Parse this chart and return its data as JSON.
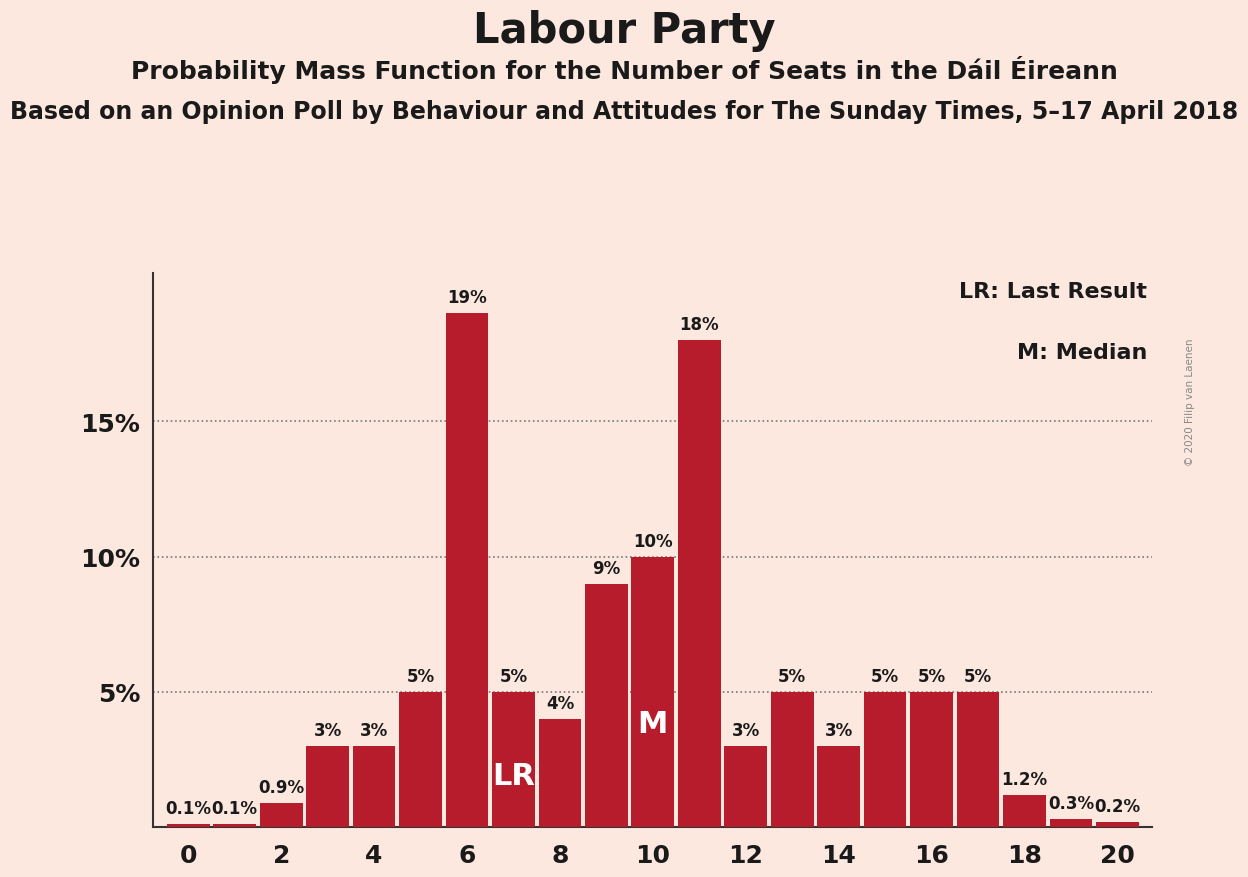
{
  "title": "Labour Party",
  "subtitle1": "Probability Mass Function for the Number of Seats in the Dáil Éireann",
  "subtitle2": "Based on an Opinion Poll by Behaviour and Attitudes for The Sunday Times, 5–17 April 2018",
  "copyright": "© 2020 Filip van Laenen",
  "legend_lr": "LR: Last Result",
  "legend_m": "M: Median",
  "background_color": "#fce8df",
  "bar_color": "#b71c2c",
  "seats": [
    0,
    1,
    2,
    3,
    4,
    5,
    6,
    7,
    8,
    9,
    10,
    11,
    12,
    13,
    14,
    15,
    16,
    17,
    18,
    19,
    20
  ],
  "probabilities": [
    0.1,
    0.1,
    0.9,
    3.0,
    3.0,
    5.0,
    19.0,
    5.0,
    4.0,
    9.0,
    10.0,
    18.0,
    3.0,
    5.0,
    3.0,
    5.0,
    5.0,
    5.0,
    1.2,
    0.3,
    0.2
  ],
  "bar_labels": [
    "0.1%",
    "0.1%",
    "0.9%",
    "3%",
    "3%",
    "5%",
    "19%",
    "5%",
    "4%",
    "9%",
    "10%",
    "18%",
    "3%",
    "5%",
    "3%",
    "5%",
    "5%",
    "5%",
    "1.2%",
    "0.3%",
    "0.2%"
  ],
  "last_result_seat": 7,
  "median_seat": 10,
  "ylim_max": 20.5,
  "yticks": [
    5,
    10,
    15
  ],
  "ytick_labels": [
    "5%",
    "10%",
    "15%"
  ],
  "xticks": [
    0,
    2,
    4,
    6,
    8,
    10,
    12,
    14,
    16,
    18,
    20
  ],
  "title_fontsize": 30,
  "subtitle1_fontsize": 18,
  "subtitle2_fontsize": 17,
  "bar_label_fontsize": 12,
  "axis_tick_fontsize": 18,
  "legend_fontsize": 16,
  "lr_m_fontsize": 22
}
